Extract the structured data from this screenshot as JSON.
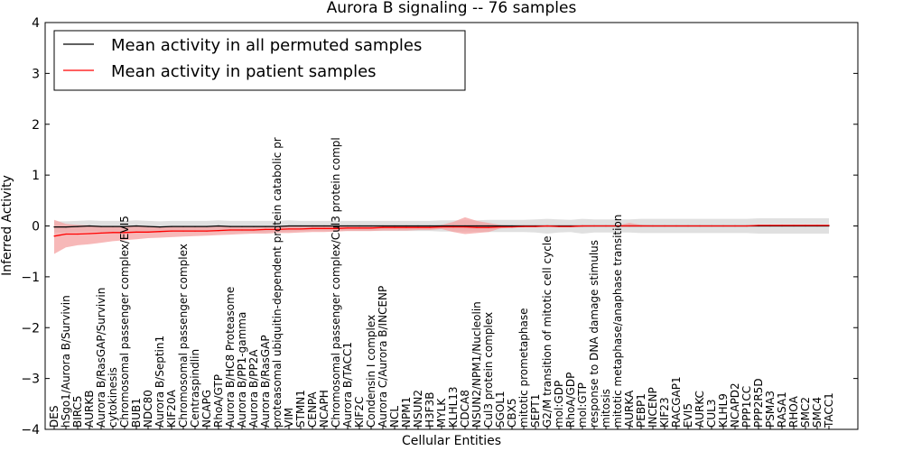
{
  "chart_data": {
    "type": "line",
    "title": "Aurora B signaling -- 76 samples",
    "xlabel": "Cellular Entities",
    "ylabel": "Inferred Activity",
    "ylim": [
      -4,
      4
    ],
    "yticks": [
      -4,
      -3,
      -2,
      -1,
      0,
      1,
      2,
      3,
      4
    ],
    "grid": false,
    "legend_position": "top-left",
    "categories": [
      "DES",
      "hSgo1/Aurora B/Survivin",
      "BIRC5",
      "AURKB",
      "Aurora B/RasGAP/Survivin",
      "cytokinesis",
      "Chromosomal passenger complex/EVI5",
      "BUB1",
      "NDC80",
      "Aurora B/Septin1",
      "KIF20A",
      "Chromosomal passenger complex",
      "Centraspindlin",
      "NCAPG",
      "RhoA/GTP",
      "Aurora B/HC8 Proteasome",
      "Aurora B/PP1-gamma",
      "Aurora B/PP2A",
      "Aurora B/RasGAP",
      "proteasomal ubiquitin-dependent protein catabolic pr",
      "VIM",
      "STMN1",
      "CENPA",
      "NCAPH",
      "Chromosomal passenger complex/Cul3 protein compl",
      "Aurora B/TACC1",
      "KIF2C",
      "Condensin I complex",
      "Aurora C/Aurora B/INCENP",
      "NCL",
      "NPM1",
      "NSUN2",
      "H3F3B",
      "MYLK",
      "KLHL13",
      "CDCA8",
      "NSUN2/NPM1/Nucleolin",
      "Cul3 protein complex",
      "SGOL1",
      "CBX5",
      "mitotic prometaphase",
      "SEPT1",
      "G2/M transition of mitotic cell cycle",
      "mol:GDP",
      "RhoA/GDP",
      "mol:GTP",
      "response to DNA damage stimulus",
      "mitosis",
      "mitotic metaphase/anaphase transition",
      "AURKA",
      "PEBP1",
      "INCENP",
      "KIF23",
      "RACGAP1",
      "EVI5",
      "AURKC",
      "CUL3",
      "KLHL9",
      "NCAPD2",
      "PPP1CC",
      "PPP2R5D",
      "PSMA3",
      "RASA1",
      "RHOA",
      "SMC2",
      "SMC4",
      "TACC1"
    ],
    "series": [
      {
        "name": "Mean activity in all permuted samples",
        "color": "#000000",
        "band_color": "#cccccc",
        "values": [
          -0.02,
          -0.02,
          -0.01,
          0.0,
          -0.01,
          -0.01,
          -0.01,
          0.0,
          -0.01,
          -0.02,
          -0.01,
          -0.01,
          -0.01,
          -0.01,
          0.0,
          -0.01,
          -0.01,
          -0.01,
          -0.01,
          -0.01,
          0.0,
          0.0,
          0.0,
          0.0,
          0.0,
          0.0,
          0.0,
          0.0,
          0.0,
          0.0,
          0.0,
          0.0,
          0.0,
          0.0,
          0.0,
          0.0,
          0.0,
          0.0,
          0.0,
          0.0,
          0.0,
          0.0,
          0.0,
          0.0,
          0.0,
          0.0,
          0.0,
          0.0,
          0.0,
          0.0,
          0.0,
          0.0,
          0.0,
          0.0,
          0.0,
          0.0,
          0.0,
          0.0,
          0.0,
          0.0,
          0.0,
          0.0,
          0.0,
          0.0,
          0.0,
          0.0,
          0.0
        ],
        "lower": [
          -0.13,
          -0.13,
          -0.12,
          -0.11,
          -0.12,
          -0.12,
          -0.12,
          -0.11,
          -0.12,
          -0.13,
          -0.12,
          -0.12,
          -0.12,
          -0.12,
          -0.11,
          -0.12,
          -0.12,
          -0.12,
          -0.12,
          -0.12,
          -0.11,
          -0.1,
          -0.1,
          -0.1,
          -0.1,
          -0.1,
          -0.1,
          -0.1,
          -0.1,
          -0.1,
          -0.1,
          -0.1,
          -0.1,
          -0.11,
          -0.11,
          -0.11,
          -0.11,
          -0.12,
          -0.12,
          -0.12,
          -0.12,
          -0.13,
          -0.15,
          -0.13,
          -0.12,
          -0.15,
          -0.13,
          -0.13,
          -0.13,
          -0.13,
          -0.14,
          -0.14,
          -0.14,
          -0.14,
          -0.14,
          -0.14,
          -0.14,
          -0.14,
          -0.14,
          -0.14,
          -0.15,
          -0.15,
          -0.15,
          -0.15,
          -0.15,
          -0.15,
          -0.15
        ],
        "upper": [
          0.09,
          0.09,
          0.1,
          0.11,
          0.1,
          0.1,
          0.1,
          0.11,
          0.1,
          0.09,
          0.1,
          0.1,
          0.1,
          0.1,
          0.11,
          0.1,
          0.1,
          0.1,
          0.1,
          0.1,
          0.11,
          0.1,
          0.1,
          0.1,
          0.1,
          0.1,
          0.1,
          0.1,
          0.1,
          0.1,
          0.1,
          0.1,
          0.1,
          0.11,
          0.11,
          0.11,
          0.11,
          0.12,
          0.12,
          0.12,
          0.12,
          0.13,
          0.14,
          0.13,
          0.12,
          0.14,
          0.13,
          0.13,
          0.13,
          0.13,
          0.14,
          0.14,
          0.14,
          0.14,
          0.14,
          0.14,
          0.14,
          0.14,
          0.14,
          0.14,
          0.15,
          0.15,
          0.15,
          0.15,
          0.15,
          0.15,
          0.15
        ]
      },
      {
        "name": "Mean activity in patient samples",
        "color": "#ff0000",
        "band_color": "#f4a0a0",
        "values": [
          -0.2,
          -0.16,
          -0.16,
          -0.15,
          -0.14,
          -0.13,
          -0.13,
          -0.12,
          -0.12,
          -0.11,
          -0.1,
          -0.1,
          -0.1,
          -0.1,
          -0.09,
          -0.08,
          -0.08,
          -0.08,
          -0.07,
          -0.07,
          -0.06,
          -0.06,
          -0.05,
          -0.05,
          -0.05,
          -0.04,
          -0.04,
          -0.04,
          -0.03,
          -0.03,
          -0.03,
          -0.03,
          -0.03,
          -0.02,
          -0.02,
          -0.02,
          -0.03,
          -0.03,
          -0.02,
          -0.02,
          -0.01,
          -0.01,
          0.0,
          -0.01,
          -0.01,
          0.0,
          0.0,
          0.0,
          0.0,
          0.0,
          0.0,
          0.0,
          0.0,
          0.0,
          0.0,
          0.0,
          0.0,
          0.0,
          0.0,
          0.0,
          0.01,
          0.01,
          0.01,
          0.01,
          0.01,
          0.01,
          0.01
        ],
        "lower": [
          -0.55,
          -0.42,
          -0.38,
          -0.36,
          -0.33,
          -0.3,
          -0.28,
          -0.26,
          -0.24,
          -0.23,
          -0.22,
          -0.21,
          -0.2,
          -0.19,
          -0.18,
          -0.17,
          -0.16,
          -0.15,
          -0.15,
          -0.14,
          -0.14,
          -0.13,
          -0.12,
          -0.12,
          -0.11,
          -0.1,
          -0.1,
          -0.1,
          -0.09,
          -0.09,
          -0.09,
          -0.08,
          -0.08,
          -0.06,
          -0.12,
          -0.16,
          -0.14,
          -0.12,
          -0.05,
          -0.03,
          -0.02,
          -0.02,
          -0.02,
          -0.02,
          -0.02,
          -0.02,
          -0.01,
          -0.01,
          -0.01,
          -0.01,
          -0.01,
          -0.01,
          -0.01,
          -0.01,
          -0.01,
          0.0,
          0.0,
          0.0,
          0.0,
          0.0,
          0.0,
          0.0,
          0.0,
          0.0,
          0.0,
          0.0,
          0.0
        ],
        "upper": [
          0.12,
          0.04,
          0.02,
          0.01,
          0.0,
          0.0,
          0.0,
          -0.01,
          -0.01,
          -0.01,
          -0.01,
          -0.01,
          -0.01,
          -0.02,
          -0.01,
          -0.01,
          -0.01,
          -0.01,
          -0.01,
          -0.01,
          0.0,
          0.0,
          0.0,
          0.0,
          0.0,
          0.0,
          0.0,
          0.0,
          0.0,
          0.0,
          0.0,
          0.0,
          0.0,
          0.02,
          0.08,
          0.17,
          0.1,
          0.06,
          0.02,
          0.01,
          0.01,
          0.01,
          0.01,
          0.01,
          0.01,
          0.01,
          0.01,
          0.01,
          0.01,
          0.06,
          0.02,
          0.01,
          0.01,
          0.01,
          0.01,
          0.01,
          0.01,
          0.01,
          0.01,
          0.01,
          0.02,
          0.02,
          0.02,
          0.02,
          0.02,
          0.02,
          0.02
        ]
      }
    ]
  }
}
